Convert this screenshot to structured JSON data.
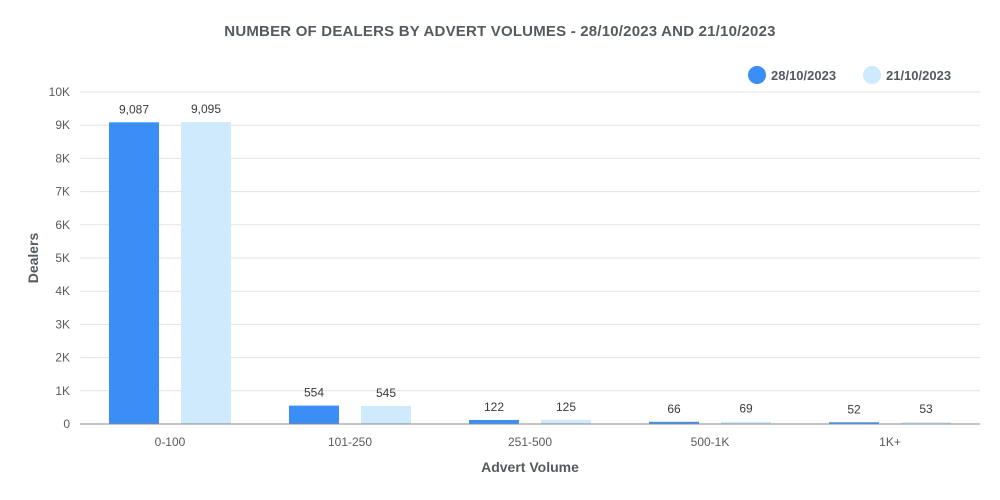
{
  "chart_data": {
    "type": "bar",
    "title": "NUMBER OF DEALERS BY ADVERT VOLUMES - 28/10/2023 AND 21/10/2023",
    "xlabel": "Advert Volume",
    "ylabel": "Dealers",
    "categories": [
      "0-100",
      "101-250",
      "251-500",
      "500-1K",
      "1K+"
    ],
    "series": [
      {
        "name": "28/10/2023",
        "color": "#3a8ef6",
        "values": [
          9087,
          554,
          122,
          66,
          52
        ],
        "labels": [
          "9,087",
          "554",
          "122",
          "66",
          "52"
        ]
      },
      {
        "name": "21/10/2023",
        "color": "#cfeafc",
        "values": [
          9095,
          545,
          125,
          69,
          53
        ],
        "labels": [
          "9,095",
          "545",
          "125",
          "69",
          "53"
        ]
      }
    ],
    "ylim": [
      0,
      10000
    ],
    "yticks": [
      0,
      1000,
      2000,
      3000,
      4000,
      5000,
      6000,
      7000,
      8000,
      9000,
      10000
    ],
    "ytick_labels": [
      "0",
      "1K",
      "2K",
      "3K",
      "4K",
      "5K",
      "6K",
      "7K",
      "8K",
      "9K",
      "10K"
    ],
    "grid": true,
    "legend_position": "top-right"
  }
}
